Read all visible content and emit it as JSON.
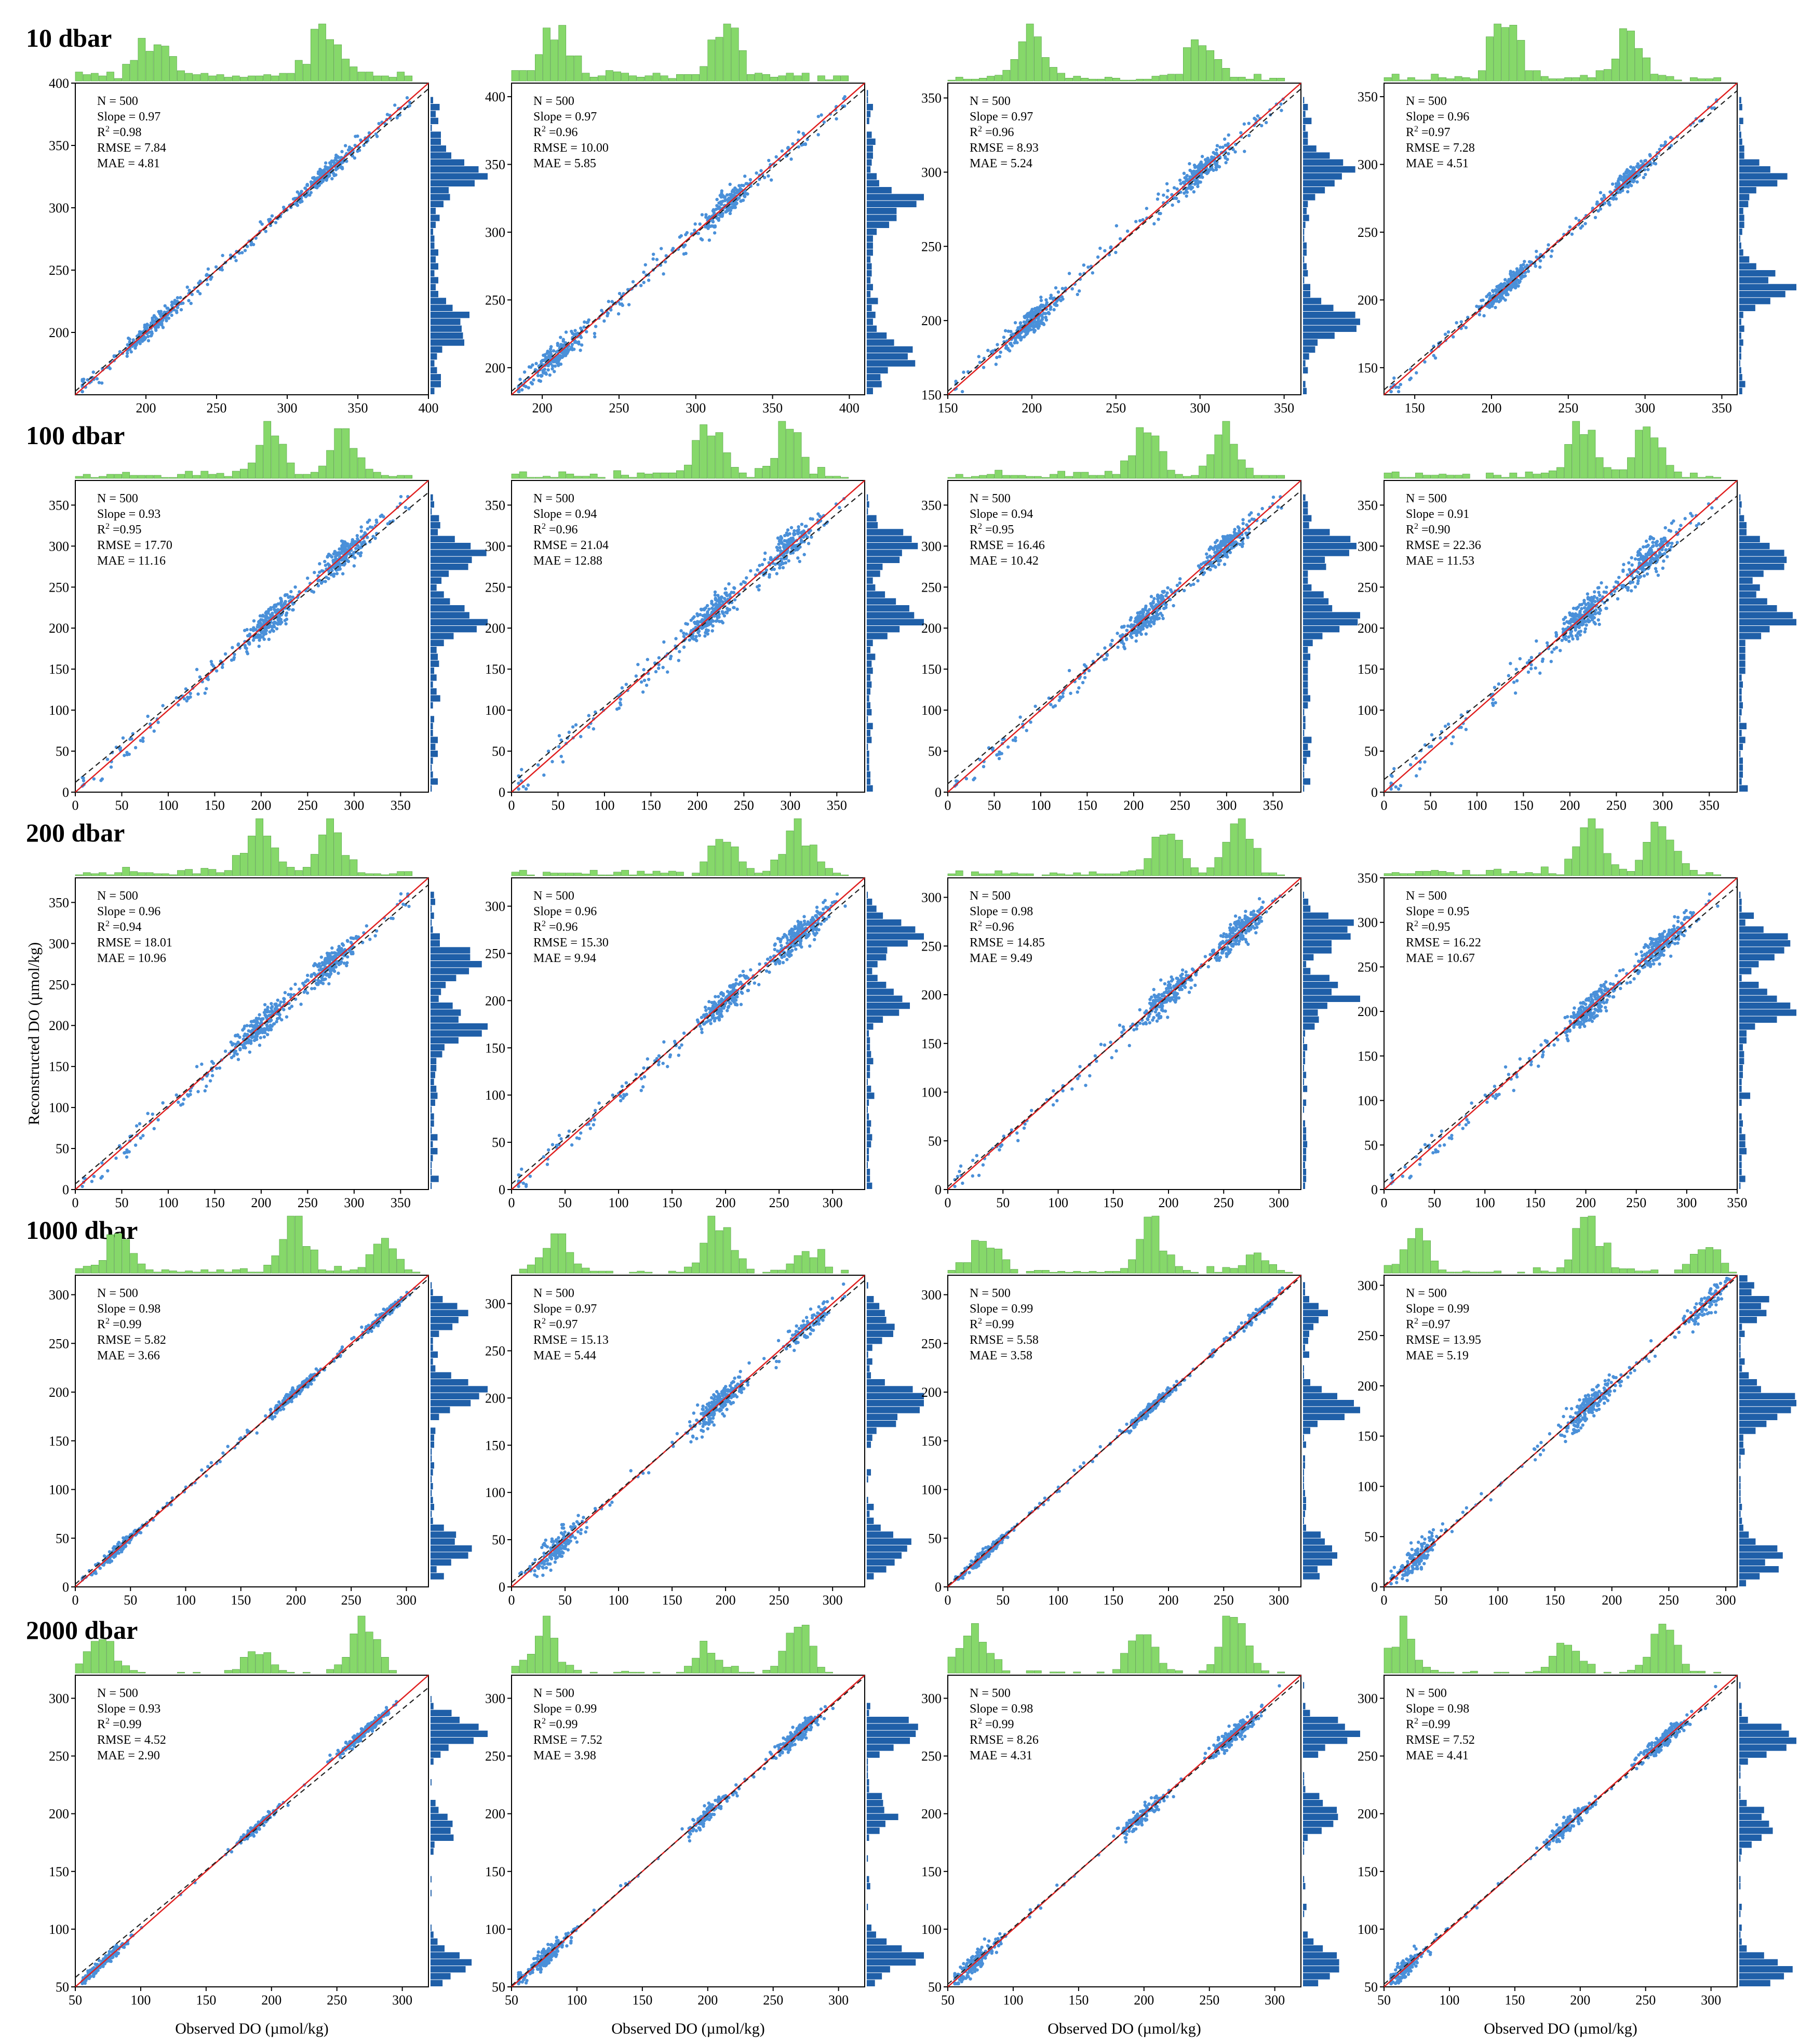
{
  "figure": {
    "xlabel": "Observed DO (µmol/kg)",
    "ylabel": "Reconstructed DO (µmol/kg)"
  },
  "colors": {
    "points": "#4a90d9",
    "one_to_one_line": "#e02020",
    "fit_line": "#222222",
    "histogram_top": "#86d86a",
    "histogram_right": "#1f5fa8"
  },
  "chart_data": [
    {
      "type": "scatter",
      "row_label": "10 dbar",
      "xlim": [
        150,
        400
      ],
      "ylim": [
        150,
        400
      ],
      "xticks": [
        200,
        250,
        300,
        350,
        400
      ],
      "yticks": [
        200,
        250,
        300,
        350,
        400
      ],
      "stats": {
        "N": "500",
        "Slope": "0.97",
        "R2": "0.98",
        "RMSE": "7.84",
        "MAE": "4.81"
      },
      "cluster": [
        [
          205,
          210,
          0.25
        ],
        [
          325,
          320,
          0.35
        ]
      ],
      "lines": [
        "1:1",
        "fit"
      ]
    },
    {
      "type": "scatter",
      "xlim": [
        180,
        410
      ],
      "ylim": [
        180,
        410
      ],
      "xticks": [
        200,
        250,
        300,
        350,
        400
      ],
      "yticks": [
        200,
        250,
        300,
        350,
        400
      ],
      "stats": {
        "N": "500",
        "Slope": "0.97",
        "R2": "0.96",
        "RMSE": "10.00",
        "MAE": "5.85"
      },
      "cluster": [
        [
          210,
          210,
          0.3
        ],
        [
          320,
          315,
          0.3
        ]
      ],
      "lines": [
        "1:1",
        "fit"
      ]
    },
    {
      "type": "scatter",
      "xlim": [
        150,
        360
      ],
      "ylim": [
        150,
        360
      ],
      "xticks": [
        150,
        200,
        250,
        300,
        350
      ],
      "yticks": [
        150,
        200,
        250,
        300,
        350
      ],
      "stats": {
        "N": "500",
        "Slope": "0.97",
        "R2": "0.96",
        "RMSE": "8.93",
        "MAE": "5.24"
      },
      "cluster": [
        [
          200,
          200,
          0.4
        ],
        [
          300,
          300,
          0.3
        ]
      ],
      "lines": [
        "1:1",
        "fit"
      ]
    },
    {
      "type": "scatter",
      "xlim": [
        130,
        360
      ],
      "ylim": [
        130,
        360
      ],
      "xticks": [
        150,
        200,
        250,
        300,
        350
      ],
      "yticks": [
        150,
        200,
        250,
        300,
        350
      ],
      "stats": {
        "N": "500",
        "Slope": "0.96",
        "R2": "0.97",
        "RMSE": "7.28",
        "MAE": "4.51"
      },
      "cluster": [
        [
          210,
          210,
          0.45
        ],
        [
          290,
          290,
          0.3
        ]
      ],
      "lines": [
        "1:1",
        "fit"
      ]
    },
    {
      "type": "scatter",
      "row_label": "100 dbar",
      "xlim": [
        0,
        380
      ],
      "ylim": [
        0,
        380
      ],
      "xticks": [
        0,
        50,
        100,
        150,
        200,
        250,
        300,
        350
      ],
      "yticks": [
        0,
        50,
        100,
        150,
        200,
        250,
        300,
        350
      ],
      "stats": {
        "N": "500",
        "Slope": "0.93",
        "R2": "0.95",
        "RMSE": "17.70",
        "MAE": "11.16"
      },
      "cluster": [
        [
          210,
          215,
          0.4
        ],
        [
          290,
          290,
          0.35
        ]
      ],
      "lines": [
        "1:1",
        "fit"
      ]
    },
    {
      "type": "scatter",
      "xlim": [
        0,
        380
      ],
      "ylim": [
        0,
        380
      ],
      "xticks": [
        0,
        50,
        100,
        150,
        200,
        250,
        300,
        350
      ],
      "yticks": [
        0,
        50,
        100,
        150,
        200,
        250,
        300,
        350
      ],
      "stats": {
        "N": "500",
        "Slope": "0.94",
        "R2": "0.96",
        "RMSE": "21.04",
        "MAE": "12.88"
      },
      "cluster": [
        [
          215,
          220,
          0.4
        ],
        [
          300,
          300,
          0.35
        ]
      ],
      "lines": [
        "1:1",
        "fit"
      ]
    },
    {
      "type": "scatter",
      "xlim": [
        0,
        380
      ],
      "ylim": [
        0,
        380
      ],
      "xticks": [
        0,
        50,
        100,
        150,
        200,
        250,
        300,
        350
      ],
      "yticks": [
        0,
        50,
        100,
        150,
        200,
        250,
        300,
        350
      ],
      "stats": {
        "N": "500",
        "Slope": "0.94",
        "R2": "0.95",
        "RMSE": "16.46",
        "MAE": "10.42"
      },
      "cluster": [
        [
          215,
          215,
          0.4
        ],
        [
          300,
          300,
          0.35
        ]
      ],
      "lines": [
        "1:1",
        "fit"
      ]
    },
    {
      "type": "scatter",
      "xlim": [
        0,
        380
      ],
      "ylim": [
        0,
        380
      ],
      "xticks": [
        0,
        50,
        100,
        150,
        200,
        250,
        300,
        350
      ],
      "yticks": [
        0,
        50,
        100,
        150,
        200,
        250,
        300,
        350
      ],
      "stats": {
        "N": "500",
        "Slope": "0.91",
        "R2": "0.90",
        "RMSE": "22.36",
        "MAE": "11.53"
      },
      "cluster": [
        [
          215,
          215,
          0.4
        ],
        [
          285,
          285,
          0.35
        ]
      ],
      "lines": [
        "1:1",
        "fit"
      ]
    },
    {
      "type": "scatter",
      "row_label": "200 dbar",
      "xlim": [
        0,
        380
      ],
      "ylim": [
        0,
        380
      ],
      "xticks": [
        0,
        50,
        100,
        150,
        200,
        250,
        300,
        350
      ],
      "yticks": [
        0,
        50,
        100,
        150,
        200,
        250,
        300,
        350
      ],
      "stats": {
        "N": "500",
        "Slope": "0.96",
        "R2": "0.94",
        "RMSE": "18.01",
        "MAE": "10.96"
      },
      "cluster": [
        [
          200,
          200,
          0.4
        ],
        [
          275,
          275,
          0.35
        ]
      ],
      "lines": [
        "1:1",
        "fit"
      ]
    },
    {
      "type": "scatter",
      "xlim": [
        0,
        330
      ],
      "ylim": [
        0,
        330
      ],
      "xticks": [
        0,
        50,
        100,
        150,
        200,
        250,
        300
      ],
      "yticks": [
        0,
        50,
        100,
        150,
        200,
        250,
        300
      ],
      "stats": {
        "N": "500",
        "Slope": "0.96",
        "R2": "0.96",
        "RMSE": "15.30",
        "MAE": "9.94"
      },
      "cluster": [
        [
          200,
          200,
          0.35
        ],
        [
          270,
          270,
          0.4
        ]
      ],
      "lines": [
        "1:1",
        "fit"
      ]
    },
    {
      "type": "scatter",
      "xlim": [
        0,
        320
      ],
      "ylim": [
        0,
        320
      ],
      "xticks": [
        0,
        50,
        100,
        150,
        200,
        250,
        300
      ],
      "yticks": [
        0,
        50,
        100,
        150,
        200,
        250,
        300
      ],
      "stats": {
        "N": "500",
        "Slope": "0.98",
        "R2": "0.96",
        "RMSE": "14.85",
        "MAE": "9.49"
      },
      "cluster": [
        [
          200,
          200,
          0.35
        ],
        [
          265,
          265,
          0.45
        ]
      ],
      "lines": [
        "1:1",
        "fit"
      ]
    },
    {
      "type": "scatter",
      "xlim": [
        0,
        350
      ],
      "ylim": [
        0,
        350
      ],
      "xticks": [
        0,
        50,
        100,
        150,
        200,
        250,
        300,
        350
      ],
      "yticks": [
        0,
        50,
        100,
        150,
        200,
        250,
        300,
        350
      ],
      "stats": {
        "N": "500",
        "Slope": "0.95",
        "R2": "0.95",
        "RMSE": "16.22",
        "MAE": "10.67"
      },
      "cluster": [
        [
          205,
          205,
          0.4
        ],
        [
          275,
          275,
          0.35
        ]
      ],
      "lines": [
        "1:1",
        "fit"
      ]
    },
    {
      "type": "scatter",
      "row_label": "1000 dbar",
      "xlim": [
        0,
        320
      ],
      "ylim": [
        0,
        320
      ],
      "xticks": [
        0,
        50,
        100,
        150,
        200,
        250,
        300
      ],
      "yticks": [
        0,
        50,
        100,
        150,
        200,
        250,
        300
      ],
      "stats": {
        "N": "500",
        "Slope": "0.98",
        "R2": "0.99",
        "RMSE": "5.82",
        "MAE": "3.66"
      },
      "cluster": [
        [
          40,
          40,
          0.25
        ],
        [
          200,
          200,
          0.4
        ],
        [
          280,
          280,
          0.2
        ]
      ],
      "lines": [
        "1:1",
        "fit"
      ]
    },
    {
      "type": "scatter",
      "xlim": [
        0,
        330
      ],
      "ylim": [
        0,
        330
      ],
      "xticks": [
        0,
        50,
        100,
        150,
        200,
        250,
        300
      ],
      "yticks": [
        0,
        50,
        100,
        150,
        200,
        250,
        300
      ],
      "stats": {
        "N": "500",
        "Slope": "0.97",
        "R2": "0.97",
        "RMSE": "15.13",
        "MAE": "5.44"
      },
      "cluster": [
        [
          40,
          40,
          0.3
        ],
        [
          195,
          195,
          0.45
        ],
        [
          280,
          280,
          0.15
        ]
      ],
      "lines": [
        "1:1",
        "fit"
      ]
    },
    {
      "type": "scatter",
      "xlim": [
        0,
        320
      ],
      "ylim": [
        0,
        320
      ],
      "xticks": [
        0,
        50,
        100,
        150,
        200,
        250,
        300
      ],
      "yticks": [
        0,
        50,
        100,
        150,
        200,
        250,
        300
      ],
      "stats": {
        "N": "500",
        "Slope": "0.99",
        "R2": "0.99",
        "RMSE": "5.58",
        "MAE": "3.58"
      },
      "cluster": [
        [
          35,
          35,
          0.3
        ],
        [
          185,
          185,
          0.4
        ],
        [
          280,
          280,
          0.15
        ]
      ],
      "lines": [
        "1:1",
        "fit"
      ]
    },
    {
      "type": "scatter",
      "xlim": [
        0,
        310
      ],
      "ylim": [
        0,
        310
      ],
      "xticks": [
        0,
        50,
        100,
        150,
        200,
        250,
        300
      ],
      "yticks": [
        0,
        50,
        100,
        150,
        200,
        250,
        300
      ],
      "stats": {
        "N": "500",
        "Slope": "0.99",
        "R2": "0.97",
        "RMSE": "13.95",
        "MAE": "5.19"
      },
      "cluster": [
        [
          30,
          30,
          0.3
        ],
        [
          180,
          180,
          0.4
        ],
        [
          285,
          285,
          0.2
        ]
      ],
      "lines": [
        "1:1",
        "fit"
      ]
    },
    {
      "type": "scatter",
      "row_label": "2000 dbar",
      "xlim": [
        50,
        320
      ],
      "ylim": [
        50,
        320
      ],
      "xticks": [
        50,
        100,
        150,
        200,
        250,
        300
      ],
      "yticks": [
        50,
        100,
        150,
        200,
        250,
        300
      ],
      "stats": {
        "N": "500",
        "Slope": "0.93",
        "R2": "0.99",
        "RMSE": "4.52",
        "MAE": "2.90"
      },
      "cluster": [
        [
          70,
          70,
          0.3
        ],
        [
          190,
          190,
          0.2
        ],
        [
          270,
          270,
          0.45
        ]
      ],
      "lines": [
        "1:1",
        "fit"
      ]
    },
    {
      "type": "scatter",
      "xlim": [
        50,
        320
      ],
      "ylim": [
        50,
        320
      ],
      "xticks": [
        50,
        100,
        150,
        200,
        250,
        300
      ],
      "yticks": [
        50,
        100,
        150,
        200,
        250,
        300
      ],
      "stats": {
        "N": "500",
        "Slope": "0.99",
        "R2": "0.99",
        "RMSE": "7.52",
        "MAE": "3.98"
      },
      "cluster": [
        [
          75,
          75,
          0.35
        ],
        [
          200,
          200,
          0.2
        ],
        [
          270,
          270,
          0.4
        ]
      ],
      "lines": [
        "1:1",
        "fit"
      ]
    },
    {
      "type": "scatter",
      "xlim": [
        50,
        320
      ],
      "ylim": [
        50,
        320
      ],
      "xticks": [
        50,
        100,
        150,
        200,
        250,
        300
      ],
      "yticks": [
        50,
        100,
        150,
        200,
        250,
        300
      ],
      "stats": {
        "N": "500",
        "Slope": "0.98",
        "R2": "0.99",
        "RMSE": "8.26",
        "MAE": "4.31"
      },
      "cluster": [
        [
          70,
          70,
          0.3
        ],
        [
          200,
          200,
          0.25
        ],
        [
          270,
          270,
          0.4
        ]
      ],
      "lines": [
        "1:1",
        "fit"
      ]
    },
    {
      "type": "scatter",
      "xlim": [
        50,
        320
      ],
      "ylim": [
        50,
        320
      ],
      "xticks": [
        50,
        100,
        150,
        200,
        250,
        300
      ],
      "yticks": [
        50,
        100,
        150,
        200,
        250,
        300
      ],
      "stats": {
        "N": "500",
        "Slope": "0.98",
        "R2": "0.99",
        "RMSE": "7.52",
        "MAE": "4.41"
      },
      "cluster": [
        [
          65,
          65,
          0.3
        ],
        [
          190,
          190,
          0.25
        ],
        [
          265,
          265,
          0.4
        ]
      ],
      "lines": [
        "1:1",
        "fit"
      ]
    }
  ]
}
